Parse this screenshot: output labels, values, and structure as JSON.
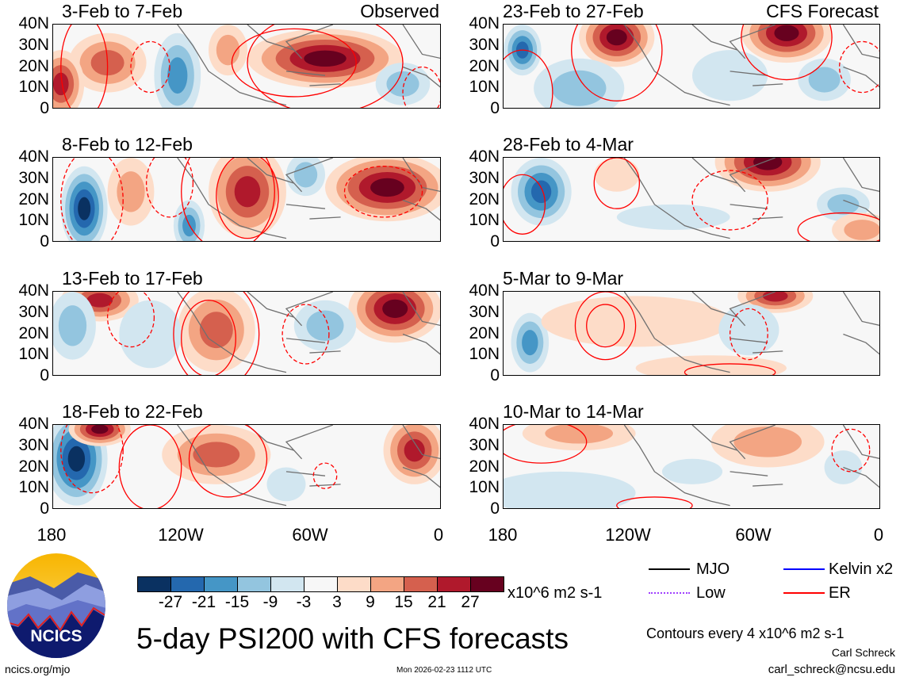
{
  "panels": [
    {
      "title": "3-Feb to 7-Feb",
      "tag": "Observed"
    },
    {
      "title": "8-Feb to 12-Feb",
      "tag": ""
    },
    {
      "title": "13-Feb to 17-Feb",
      "tag": ""
    },
    {
      "title": "18-Feb to 22-Feb",
      "tag": ""
    },
    {
      "title": "23-Feb to 27-Feb",
      "tag": "CFS Forecast"
    },
    {
      "title": "28-Feb to 4-Mar",
      "tag": ""
    },
    {
      "title": "5-Mar to 9-Mar",
      "tag": ""
    },
    {
      "title": "10-Mar to 14-Mar",
      "tag": ""
    }
  ],
  "y_ticks": [
    "40N",
    "30N",
    "20N",
    "10N",
    "0"
  ],
  "x_ticks": [
    "180",
    "120W",
    "60W",
    "0"
  ],
  "colorbar": {
    "colors": [
      "#0a3161",
      "#2468ae",
      "#4596c6",
      "#93c5df",
      "#d2e6f0",
      "#f7f7f7",
      "#fddcc8",
      "#f3a583",
      "#d5604e",
      "#b0192c",
      "#67011f"
    ],
    "labels": [
      "-27",
      "-21",
      "-15",
      "-9",
      "-3",
      "3",
      "9",
      "15",
      "21",
      "27"
    ],
    "units": "x10^6 m2 s-1"
  },
  "legend": [
    {
      "label": "MJO",
      "color": "#000000"
    },
    {
      "label": "Kelvin x2",
      "color": "#0000ff"
    },
    {
      "label": "Low",
      "color": "#a040ff"
    },
    {
      "label": "ER",
      "color": "#ff0000"
    }
  ],
  "title": "5-day PSI200 with CFS forecasts",
  "contour_note": "Contours every 4 x10^6 m2 s-1",
  "author": "Carl Schreck",
  "email": "carl_schreck@ncsu.edu",
  "site": "ncics.org/mjo",
  "timestamp": "Mon 2026-02-23 1112 UTC",
  "logo_text": "NCICS"
}
